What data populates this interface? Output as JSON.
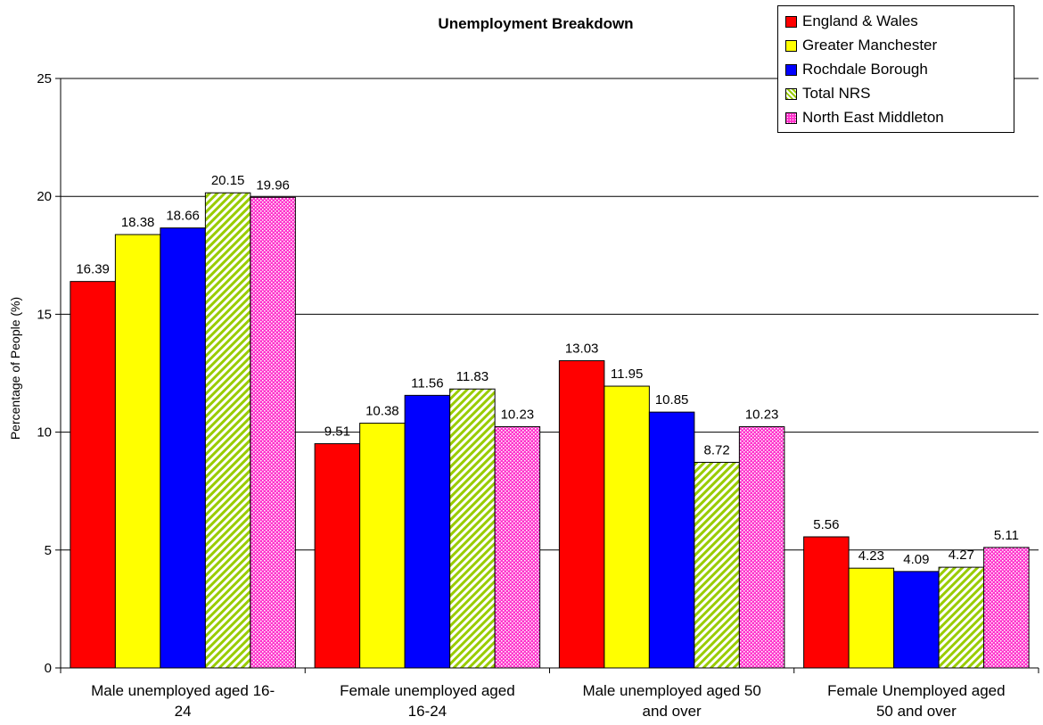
{
  "chart_data": {
    "type": "bar",
    "title": "Unemployment Breakdown",
    "ylabel": "Percentage of People (%)",
    "xlabel": "",
    "ylim": [
      0,
      25
    ],
    "yticks": [
      0,
      5,
      10,
      15,
      20,
      25
    ],
    "grid": true,
    "legend_position": "top-right",
    "categories": [
      [
        "Male unemployed aged 16-",
        "24"
      ],
      [
        "Female unemployed aged",
        "16-24"
      ],
      [
        "Male unemployed aged 50",
        "and over"
      ],
      [
        "Female Unemployed aged",
        "50 and over"
      ]
    ],
    "series": [
      {
        "name": "England & Wales",
        "color": "#ff0000",
        "pattern": "solid",
        "values": [
          16.39,
          9.51,
          13.03,
          5.56
        ]
      },
      {
        "name": "Greater Manchester",
        "color": "#ffff00",
        "pattern": "solid",
        "values": [
          18.38,
          10.38,
          11.95,
          4.23
        ]
      },
      {
        "name": "Rochdale Borough",
        "color": "#0000ff",
        "pattern": "solid",
        "values": [
          18.66,
          11.56,
          10.85,
          4.09
        ]
      },
      {
        "name": "Total NRS",
        "color": "#99cc00",
        "pattern": "diagonal-stripes",
        "values": [
          20.15,
          11.83,
          8.72,
          4.27
        ]
      },
      {
        "name": "North East Middleton",
        "color": "#ff33cc",
        "pattern": "dots",
        "values": [
          19.96,
          10.23,
          10.23,
          5.11
        ]
      }
    ]
  }
}
